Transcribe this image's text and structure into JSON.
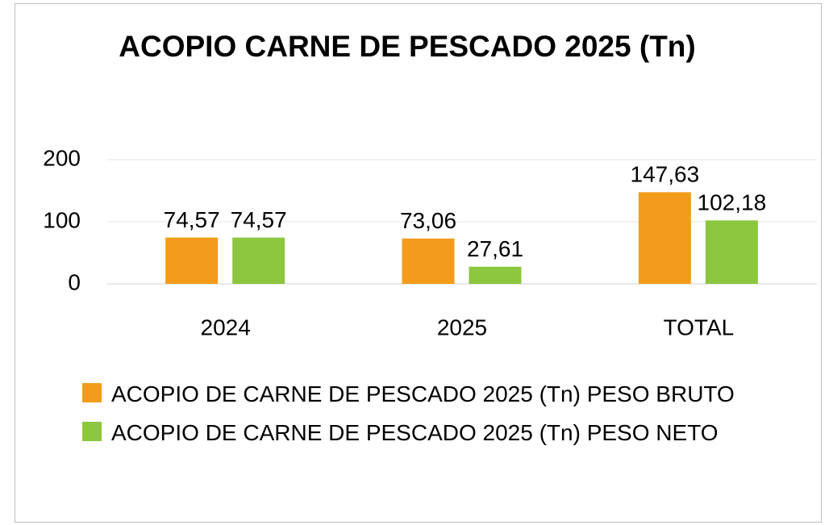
{
  "chart_data": {
    "type": "bar",
    "title": "ACOPIO CARNE DE PESCADO 2025 (Tn)",
    "categories": [
      "2024",
      "2025",
      "TOTAL"
    ],
    "series": [
      {
        "name": "ACOPIO DE CARNE DE PESCADO 2025 (Tn) PESO BRUTO",
        "color": "#f39c1b",
        "values": [
          74.57,
          73.06,
          147.63
        ],
        "value_labels": [
          "74,57",
          "73,06",
          "147,63"
        ]
      },
      {
        "name": "ACOPIO DE CARNE DE PESCADO 2025 (Tn) PESO NETO",
        "color": "#8dc63f",
        "values": [
          74.57,
          27.61,
          102.18
        ],
        "value_labels": [
          "74,57",
          "27,61",
          "102,18"
        ]
      }
    ],
    "ylim": [
      0,
      200
    ],
    "yticks": [
      0,
      100,
      200
    ],
    "grid": true,
    "legend": "bottom"
  }
}
